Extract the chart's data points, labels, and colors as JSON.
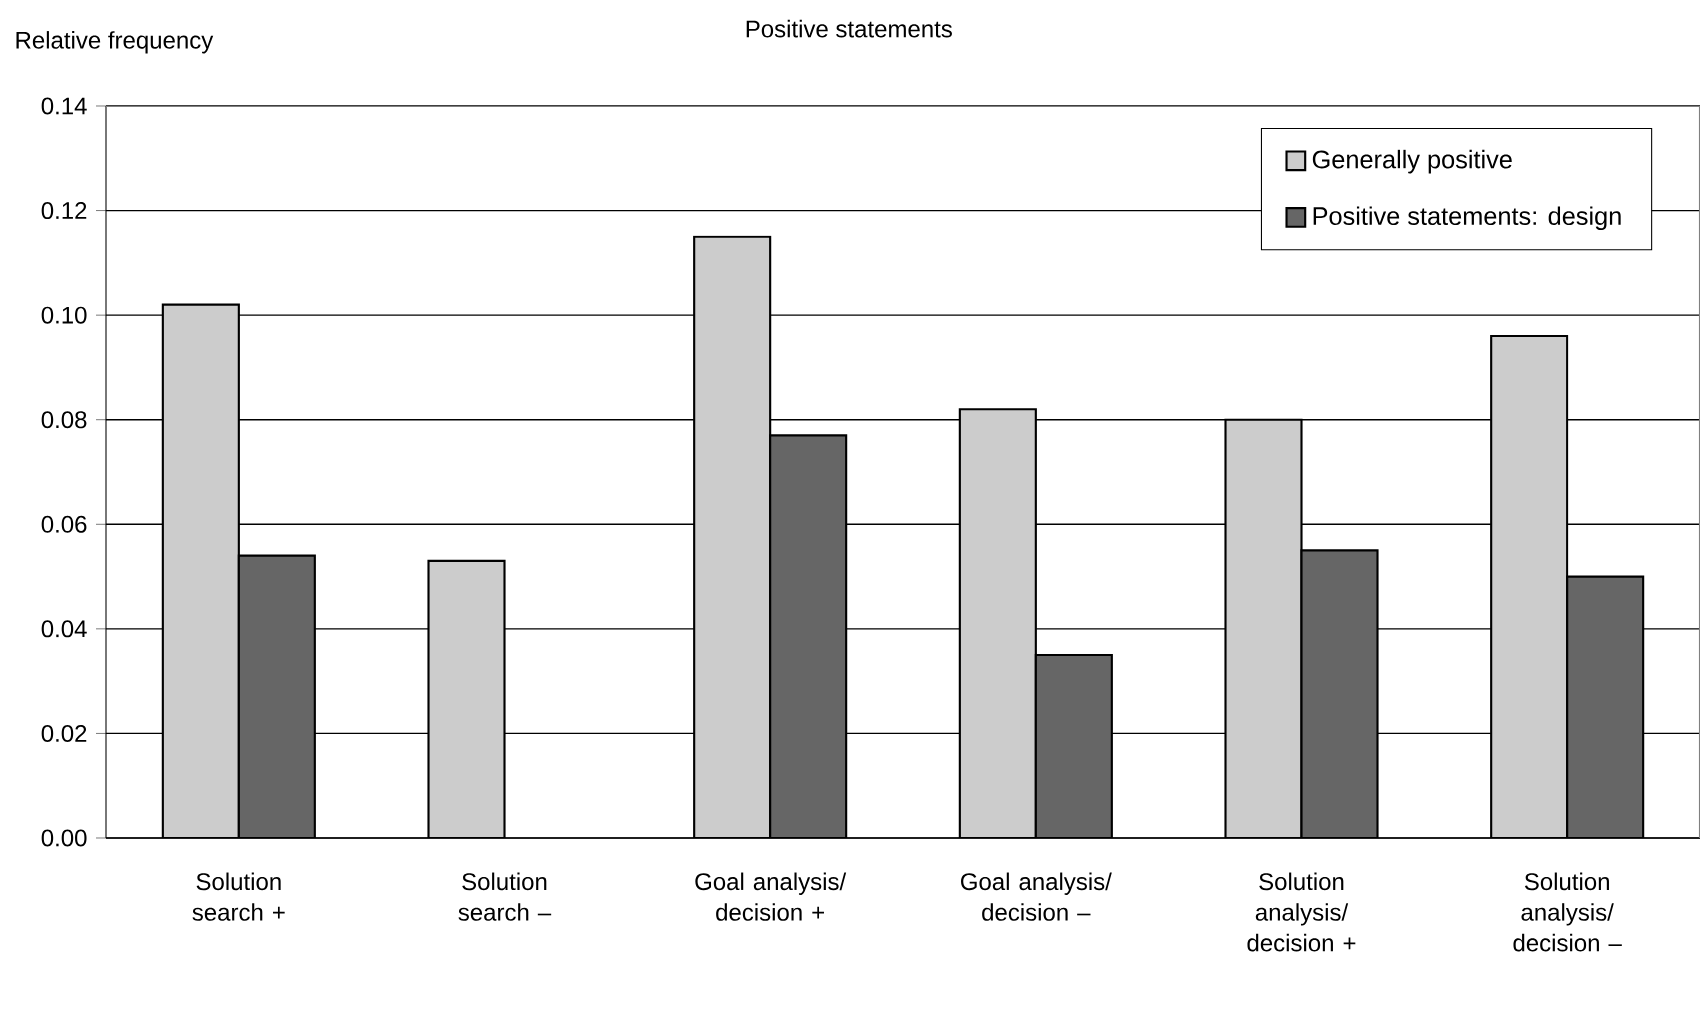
{
  "chart_data": {
    "type": "bar",
    "title": "Positive statements",
    "ylabel": "Relative frequency",
    "categories": [
      "Solution search +",
      "Solution search –",
      "Goal analysis/ decision +",
      "Goal analysis/ decision –",
      "Solution analysis/ decision +",
      "Solution analysis/ decision –"
    ],
    "series": [
      {
        "name": "Generally positive",
        "color": "#cccccc",
        "values": [
          0.102,
          0.053,
          0.115,
          0.082,
          0.08,
          0.096
        ]
      },
      {
        "name": "Positive statements: design",
        "color": "#666666",
        "values": [
          0.054,
          null,
          0.077,
          0.035,
          0.055,
          0.05
        ]
      }
    ],
    "ylim": [
      0,
      0.14
    ],
    "yticks": [
      {
        "value": 0,
        "label": "0.00"
      },
      {
        "value": 0.02,
        "label": "0.02"
      },
      {
        "value": 0.04,
        "label": "0.04"
      },
      {
        "value": 0.06,
        "label": "0.06"
      },
      {
        "value": 0.08,
        "label": "0.08"
      },
      {
        "value": 0.1,
        "label": "0.10"
      },
      {
        "value": 0.12,
        "label": "0.12"
      },
      {
        "value": 0.14,
        "label": "0.14"
      }
    ],
    "grid": "y",
    "legend": "top right"
  }
}
